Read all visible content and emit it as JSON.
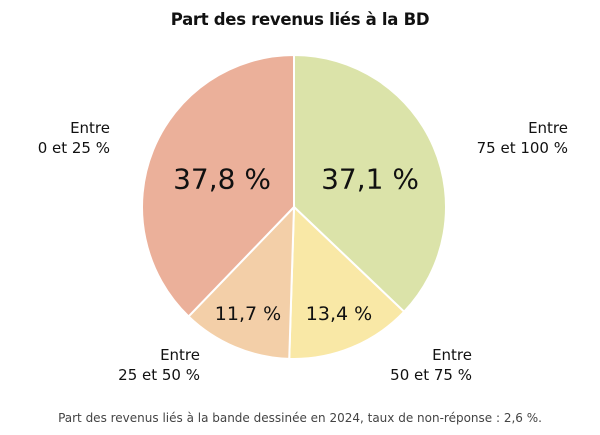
{
  "chart_data": {
    "type": "pie",
    "title": "Part des revenus liés à la BD",
    "caption": "Part des revenus liés à la bande dessinée en 2024, taux de non-réponse : 2,6 %.",
    "slices": [
      {
        "label_line1": "Entre",
        "label_line2": "75 et 100 %",
        "value": 37.1,
        "value_label": "37,1 %",
        "color": "#dbe3a9"
      },
      {
        "label_line1": "Entre",
        "label_line2": "50 et 75 %",
        "value": 13.4,
        "value_label": "13,4 %",
        "color": "#f9e8a6"
      },
      {
        "label_line1": "Entre",
        "label_line2": "25 et 50 %",
        "value": 11.7,
        "value_label": "11,7 %",
        "color": "#f3cfa8"
      },
      {
        "label_line1": "Entre",
        "label_line2": "0 et 25 %",
        "value": 37.8,
        "value_label": "37,8 %",
        "color": "#ebb09a"
      }
    ],
    "start_angle_deg": 0,
    "direction": "clockwise"
  }
}
